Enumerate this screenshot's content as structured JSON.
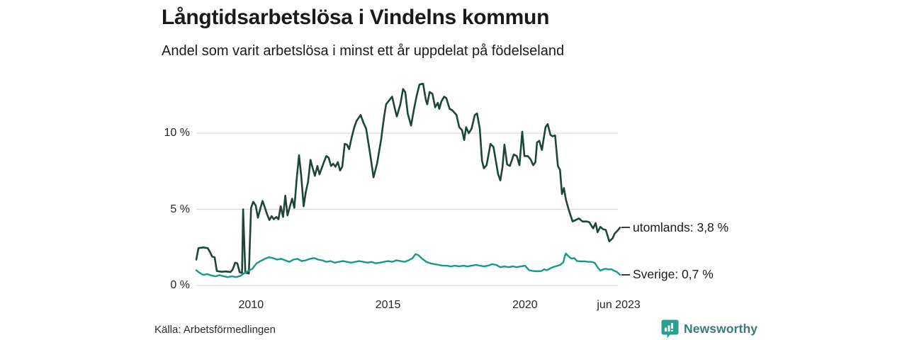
{
  "header": {
    "title": "Långtidsarbetslösa i Vindelns kommun",
    "subtitle": "Andel som varit arbetslösa i minst ett år uppdelat på födelseland"
  },
  "footer": {
    "source": "Källa: Arbetsförmedlingen",
    "brand": "Newsworthy"
  },
  "colors": {
    "utomlands_line": "#1d4639",
    "sverige_line": "#169a84",
    "grid": "#dadada",
    "text": "#1a1a1a",
    "brand_icon": "#2ba08e",
    "brand_text": "#357c74"
  },
  "chart_data": {
    "type": "line",
    "title": "Långtidsarbetslösa i Vindelns kommun",
    "subtitle": "Andel som varit arbetslösa i minst ett år uppdelat på födelseland",
    "xlabel": "",
    "ylabel": "",
    "unit": "%",
    "grid": "horizontal-only",
    "legend_position": "end-of-line-labels-right",
    "x_range": [
      2008.0,
      2023.47
    ],
    "ylim": [
      0,
      13.4
    ],
    "x_ticks": [
      {
        "v": 2010,
        "label": "2010"
      },
      {
        "v": 2015,
        "label": "2015"
      },
      {
        "v": 2020,
        "label": "2020"
      },
      {
        "v": 2023.42,
        "label": "jun 2023"
      }
    ],
    "y_ticks": [
      {
        "v": 0,
        "label": "0 %"
      },
      {
        "v": 5,
        "label": "5 %"
      },
      {
        "v": 10,
        "label": "10 %"
      }
    ],
    "series": [
      {
        "name": "utomlands",
        "end_label": "utomlands: 3,8 %",
        "last_value_text": "3,8 %",
        "color_key": "utomlands_line",
        "stroke_width": 2.6,
        "points": [
          [
            2008.0,
            1.7
          ],
          [
            2008.08,
            2.45
          ],
          [
            2008.25,
            2.5
          ],
          [
            2008.42,
            2.45
          ],
          [
            2008.5,
            2.2
          ],
          [
            2008.58,
            1.9
          ],
          [
            2008.67,
            1.85
          ],
          [
            2008.75,
            0.95
          ],
          [
            2008.92,
            0.9
          ],
          [
            2009.08,
            0.92
          ],
          [
            2009.25,
            0.88
          ],
          [
            2009.33,
            1.05
          ],
          [
            2009.42,
            1.5
          ],
          [
            2009.5,
            1.45
          ],
          [
            2009.58,
            0.88
          ],
          [
            2009.67,
            0.82
          ],
          [
            2009.71,
            5.0
          ],
          [
            2009.79,
            0.85
          ],
          [
            2009.92,
            0.78
          ],
          [
            2010.0,
            5.1
          ],
          [
            2010.08,
            5.5
          ],
          [
            2010.17,
            5.25
          ],
          [
            2010.25,
            4.45
          ],
          [
            2010.33,
            5.0
          ],
          [
            2010.42,
            5.55
          ],
          [
            2010.5,
            5.15
          ],
          [
            2010.58,
            4.7
          ],
          [
            2010.67,
            4.3
          ],
          [
            2010.75,
            4.55
          ],
          [
            2010.83,
            4.35
          ],
          [
            2010.92,
            4.5
          ],
          [
            2011.0,
            4.35
          ],
          [
            2011.08,
            5.2
          ],
          [
            2011.17,
            4.5
          ],
          [
            2011.25,
            5.9
          ],
          [
            2011.33,
            4.6
          ],
          [
            2011.42,
            5.2
          ],
          [
            2011.5,
            5.7
          ],
          [
            2011.58,
            5.1
          ],
          [
            2011.67,
            7.1
          ],
          [
            2011.75,
            8.55
          ],
          [
            2011.83,
            7.2
          ],
          [
            2011.92,
            5.2
          ],
          [
            2012.0,
            6.15
          ],
          [
            2012.08,
            6.8
          ],
          [
            2012.17,
            8.25
          ],
          [
            2012.25,
            7.7
          ],
          [
            2012.33,
            7.2
          ],
          [
            2012.42,
            7.85
          ],
          [
            2012.5,
            7.3
          ],
          [
            2012.58,
            7.7
          ],
          [
            2012.67,
            8.15
          ],
          [
            2012.75,
            8.5
          ],
          [
            2012.83,
            8.4
          ],
          [
            2012.92,
            7.85
          ],
          [
            2013.0,
            8.0
          ],
          [
            2013.08,
            7.8
          ],
          [
            2013.17,
            8.1
          ],
          [
            2013.25,
            7.55
          ],
          [
            2013.33,
            7.8
          ],
          [
            2013.42,
            9.3
          ],
          [
            2013.5,
            9.25
          ],
          [
            2013.58,
            8.95
          ],
          [
            2013.67,
            9.7
          ],
          [
            2013.77,
            10.4
          ],
          [
            2013.85,
            10.8
          ],
          [
            2014.0,
            11.2
          ],
          [
            2014.1,
            10.7
          ],
          [
            2014.2,
            10.3
          ],
          [
            2014.35,
            8.6
          ],
          [
            2014.47,
            7.1
          ],
          [
            2014.6,
            8.0
          ],
          [
            2014.75,
            9.6
          ],
          [
            2014.85,
            11.0
          ],
          [
            2014.93,
            11.9
          ],
          [
            2015.06,
            12.2
          ],
          [
            2015.15,
            12.4
          ],
          [
            2015.25,
            11.6
          ],
          [
            2015.32,
            11.1
          ],
          [
            2015.45,
            11.9
          ],
          [
            2015.55,
            12.9
          ],
          [
            2015.63,
            12.7
          ],
          [
            2015.72,
            11.3
          ],
          [
            2015.84,
            10.5
          ],
          [
            2015.95,
            11.6
          ],
          [
            2016.05,
            12.5
          ],
          [
            2016.15,
            13.2
          ],
          [
            2016.28,
            13.25
          ],
          [
            2016.38,
            12.2
          ],
          [
            2016.43,
            11.9
          ],
          [
            2016.52,
            12.7
          ],
          [
            2016.62,
            12.6
          ],
          [
            2016.72,
            11.7
          ],
          [
            2016.82,
            12.0
          ],
          [
            2016.87,
            11.6
          ],
          [
            2016.95,
            12.1
          ],
          [
            2017.05,
            12.4
          ],
          [
            2017.13,
            12.3
          ],
          [
            2017.25,
            11.6
          ],
          [
            2017.35,
            11.5
          ],
          [
            2017.5,
            11.2
          ],
          [
            2017.6,
            10.4
          ],
          [
            2017.7,
            10.2
          ],
          [
            2017.78,
            9.55
          ],
          [
            2017.85,
            10.4
          ],
          [
            2017.95,
            10.0
          ],
          [
            2018.05,
            10.3
          ],
          [
            2018.17,
            11.2
          ],
          [
            2018.25,
            11.3
          ],
          [
            2018.35,
            10.3
          ],
          [
            2018.43,
            8.2
          ],
          [
            2018.5,
            7.7
          ],
          [
            2018.6,
            7.9
          ],
          [
            2018.74,
            9.3
          ],
          [
            2018.85,
            9.1
          ],
          [
            2019.02,
            7.3
          ],
          [
            2019.1,
            6.9
          ],
          [
            2019.18,
            7.8
          ],
          [
            2019.25,
            9.25
          ],
          [
            2019.35,
            7.95
          ],
          [
            2019.45,
            7.85
          ],
          [
            2019.59,
            8.6
          ],
          [
            2019.7,
            8.5
          ],
          [
            2019.8,
            7.9
          ],
          [
            2019.9,
            10.1
          ],
          [
            2019.98,
            8.5
          ],
          [
            2020.1,
            8.5
          ],
          [
            2020.2,
            8.3
          ],
          [
            2020.3,
            7.9
          ],
          [
            2020.38,
            8.1
          ],
          [
            2020.44,
            9.4
          ],
          [
            2020.52,
            9.5
          ],
          [
            2020.62,
            8.9
          ],
          [
            2020.75,
            10.4
          ],
          [
            2020.83,
            10.6
          ],
          [
            2020.93,
            9.9
          ],
          [
            2021.0,
            9.8
          ],
          [
            2021.1,
            9.85
          ],
          [
            2021.2,
            7.85
          ],
          [
            2021.28,
            7.6
          ],
          [
            2021.35,
            6.0
          ],
          [
            2021.42,
            6.4
          ],
          [
            2021.5,
            5.6
          ],
          [
            2021.61,
            4.9
          ],
          [
            2021.74,
            4.2
          ],
          [
            2021.85,
            4.3
          ],
          [
            2021.97,
            4.4
          ],
          [
            2022.1,
            4.2
          ],
          [
            2022.26,
            4.2
          ],
          [
            2022.35,
            4.15
          ],
          [
            2022.49,
            3.75
          ],
          [
            2022.58,
            4.1
          ],
          [
            2022.65,
            3.5
          ],
          [
            2022.75,
            3.85
          ],
          [
            2022.85,
            3.7
          ],
          [
            2022.95,
            3.65
          ],
          [
            2023.08,
            2.9
          ],
          [
            2023.2,
            3.1
          ],
          [
            2023.27,
            3.4
          ],
          [
            2023.38,
            3.6
          ],
          [
            2023.47,
            3.8
          ]
        ]
      },
      {
        "name": "Sverige",
        "end_label": "Sverige: 0,7 %",
        "last_value_text": "0,7 %",
        "color_key": "sverige_line",
        "stroke_width": 2.4,
        "points": [
          [
            2008.0,
            1.0
          ],
          [
            2008.1,
            0.85
          ],
          [
            2008.25,
            0.7
          ],
          [
            2008.4,
            0.75
          ],
          [
            2008.55,
            0.65
          ],
          [
            2008.7,
            0.6
          ],
          [
            2008.85,
            0.68
          ],
          [
            2009.0,
            0.6
          ],
          [
            2009.15,
            0.55
          ],
          [
            2009.3,
            0.6
          ],
          [
            2009.45,
            0.55
          ],
          [
            2009.6,
            0.62
          ],
          [
            2009.75,
            0.8
          ],
          [
            2009.9,
            0.95
          ],
          [
            2010.05,
            1.1
          ],
          [
            2010.2,
            1.45
          ],
          [
            2010.35,
            1.6
          ],
          [
            2010.5,
            1.75
          ],
          [
            2010.65,
            1.85
          ],
          [
            2010.8,
            1.8
          ],
          [
            2010.95,
            1.7
          ],
          [
            2011.1,
            1.75
          ],
          [
            2011.25,
            1.65
          ],
          [
            2011.4,
            1.55
          ],
          [
            2011.55,
            1.7
          ],
          [
            2011.7,
            1.75
          ],
          [
            2011.85,
            1.6
          ],
          [
            2012.0,
            1.65
          ],
          [
            2012.15,
            1.75
          ],
          [
            2012.3,
            1.8
          ],
          [
            2012.45,
            1.7
          ],
          [
            2012.6,
            1.65
          ],
          [
            2012.75,
            1.55
          ],
          [
            2012.9,
            1.6
          ],
          [
            2013.05,
            1.5
          ],
          [
            2013.2,
            1.55
          ],
          [
            2013.35,
            1.6
          ],
          [
            2013.5,
            1.55
          ],
          [
            2013.65,
            1.5
          ],
          [
            2013.8,
            1.55
          ],
          [
            2013.95,
            1.6
          ],
          [
            2014.1,
            1.55
          ],
          [
            2014.25,
            1.5
          ],
          [
            2014.4,
            1.55
          ],
          [
            2014.55,
            1.45
          ],
          [
            2014.7,
            1.5
          ],
          [
            2014.85,
            1.55
          ],
          [
            2015.0,
            1.6
          ],
          [
            2015.15,
            1.55
          ],
          [
            2015.3,
            1.65
          ],
          [
            2015.45,
            1.6
          ],
          [
            2015.6,
            1.55
          ],
          [
            2015.75,
            1.65
          ],
          [
            2015.9,
            1.8
          ],
          [
            2016.0,
            2.05
          ],
          [
            2016.1,
            2.0
          ],
          [
            2016.25,
            1.75
          ],
          [
            2016.4,
            1.55
          ],
          [
            2016.55,
            1.45
          ],
          [
            2016.7,
            1.4
          ],
          [
            2016.85,
            1.35
          ],
          [
            2017.0,
            1.3
          ],
          [
            2017.15,
            1.3
          ],
          [
            2017.3,
            1.25
          ],
          [
            2017.45,
            1.3
          ],
          [
            2017.6,
            1.25
          ],
          [
            2017.75,
            1.3
          ],
          [
            2017.9,
            1.25
          ],
          [
            2018.05,
            1.3
          ],
          [
            2018.2,
            1.35
          ],
          [
            2018.35,
            1.3
          ],
          [
            2018.5,
            1.25
          ],
          [
            2018.65,
            1.3
          ],
          [
            2018.8,
            1.4
          ],
          [
            2018.95,
            1.35
          ],
          [
            2019.1,
            1.2
          ],
          [
            2019.25,
            1.25
          ],
          [
            2019.4,
            1.2
          ],
          [
            2019.55,
            1.25
          ],
          [
            2019.7,
            1.2
          ],
          [
            2019.85,
            1.25
          ],
          [
            2020.0,
            1.3
          ],
          [
            2020.15,
            1.0
          ],
          [
            2020.3,
            0.95
          ],
          [
            2020.45,
            0.93
          ],
          [
            2020.6,
            0.95
          ],
          [
            2020.7,
            1.06
          ],
          [
            2020.8,
            1.0
          ],
          [
            2020.95,
            1.15
          ],
          [
            2021.1,
            1.25
          ],
          [
            2021.2,
            1.3
          ],
          [
            2021.3,
            1.37
          ],
          [
            2021.4,
            1.52
          ],
          [
            2021.45,
            1.9
          ],
          [
            2021.49,
            2.1
          ],
          [
            2021.6,
            1.9
          ],
          [
            2021.7,
            1.76
          ],
          [
            2021.8,
            1.8
          ],
          [
            2021.9,
            1.6
          ],
          [
            2022.05,
            1.58
          ],
          [
            2022.2,
            1.58
          ],
          [
            2022.3,
            1.55
          ],
          [
            2022.44,
            1.55
          ],
          [
            2022.55,
            1.48
          ],
          [
            2022.65,
            1.2
          ],
          [
            2022.75,
            0.97
          ],
          [
            2022.85,
            1.05
          ],
          [
            2022.95,
            1.1
          ],
          [
            2023.05,
            1.05
          ],
          [
            2023.15,
            1.07
          ],
          [
            2023.25,
            0.97
          ],
          [
            2023.35,
            0.9
          ],
          [
            2023.47,
            0.7
          ]
        ]
      }
    ]
  }
}
